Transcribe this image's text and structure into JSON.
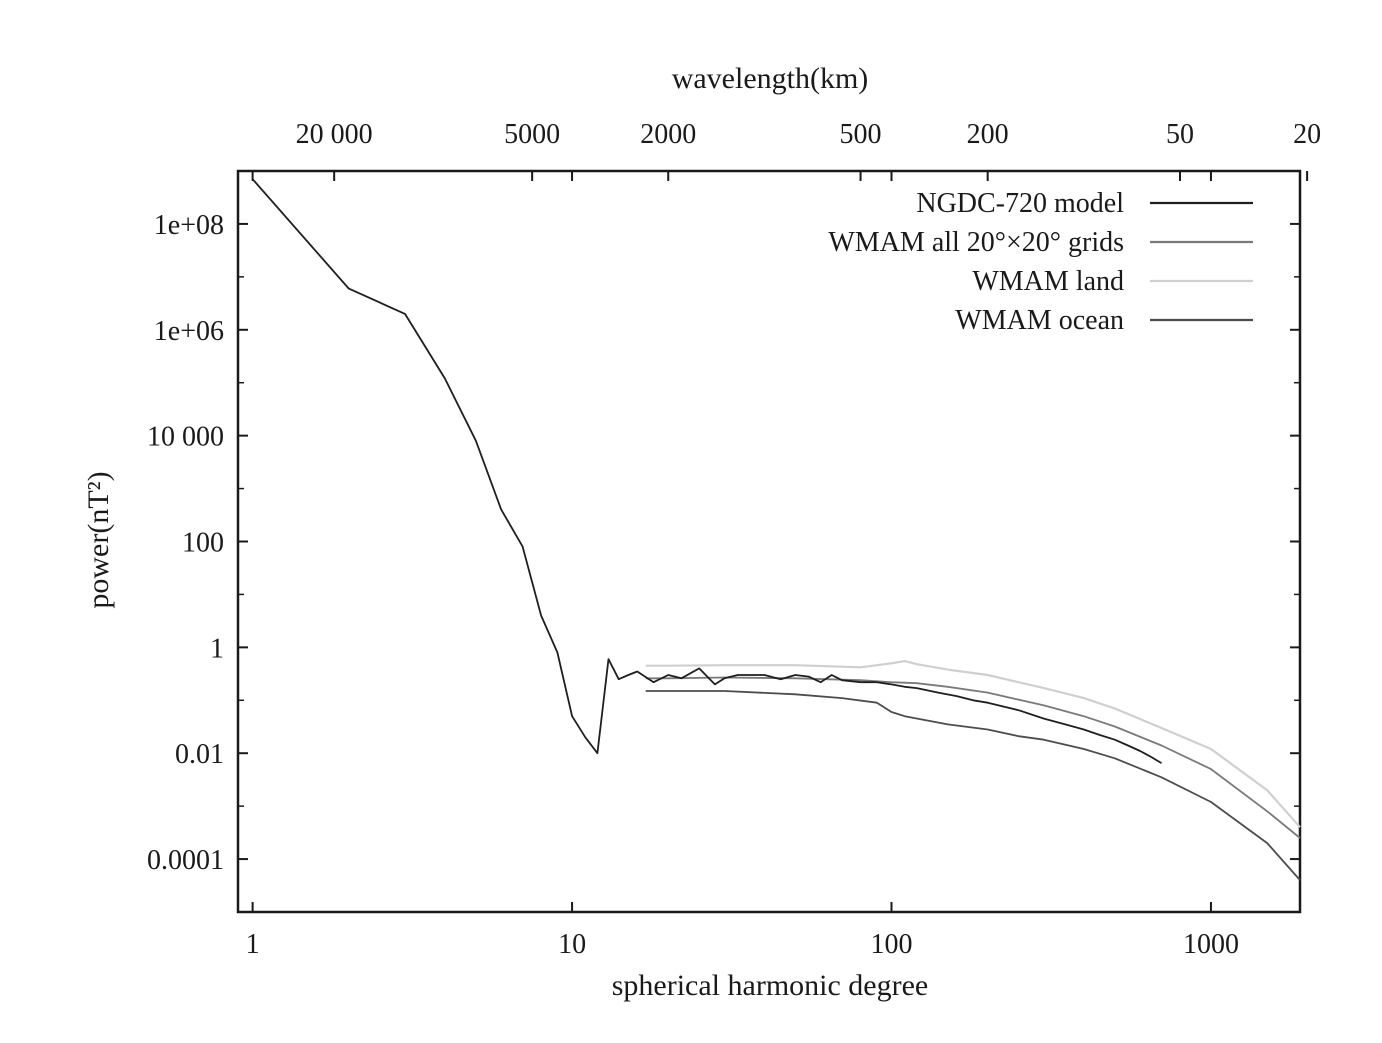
{
  "chart_data": {
    "type": "line",
    "top_axis_title": "wavelength(km)",
    "top_ticks": [
      {
        "label": "20 000",
        "degree": 1.8
      },
      {
        "label": "5000",
        "degree": 7.5
      },
      {
        "label": "2000",
        "degree": 20
      },
      {
        "label": "500",
        "degree": 80
      },
      {
        "label": "200",
        "degree": 200
      },
      {
        "label": "50",
        "degree": 800
      },
      {
        "label": "20",
        "degree": 2000
      }
    ],
    "xlabel": "spherical harmonic degree",
    "ylabel": "power(nT²)",
    "x_scale": "log",
    "y_scale": "log",
    "xlim": [
      0.9,
      1900
    ],
    "ylim": [
      1e-05,
      1000000000
    ],
    "x_ticks": [
      {
        "label": "1",
        "value": 1
      },
      {
        "label": "10",
        "value": 10
      },
      {
        "label": "100",
        "value": 100
      },
      {
        "label": "1000",
        "value": 1000
      }
    ],
    "y_ticks": [
      {
        "label": "0.0001",
        "value": 0.0001
      },
      {
        "label": "0.01",
        "value": 0.01
      },
      {
        "label": "1",
        "value": 1
      },
      {
        "label": "100",
        "value": 100
      },
      {
        "label": "10 000",
        "value": 10000
      },
      {
        "label": "1e+06",
        "value": 1000000
      },
      {
        "label": "1e+08",
        "value": 100000000
      }
    ],
    "legend_position": "top-right",
    "series": [
      {
        "name": "NGDC-720 model",
        "color": "#1f1f1f",
        "x": [
          1,
          2,
          3,
          4,
          5,
          6,
          7,
          8,
          9,
          10,
          11,
          12,
          13,
          14,
          15,
          16,
          18,
          20,
          22,
          25,
          28,
          30,
          33,
          36,
          40,
          45,
          50,
          55,
          60,
          65,
          70,
          80,
          90,
          100,
          110,
          120,
          140,
          160,
          180,
          200,
          250,
          300,
          350,
          400,
          450,
          500,
          550,
          600,
          650,
          700
        ],
        "y": [
          700000000,
          6000000,
          2000000,
          120000,
          8000,
          400,
          80,
          4,
          0.8,
          0.05,
          0.02,
          0.01,
          0.6,
          0.25,
          0.3,
          0.35,
          0.22,
          0.3,
          0.26,
          0.4,
          0.2,
          0.26,
          0.3,
          0.3,
          0.3,
          0.25,
          0.3,
          0.28,
          0.22,
          0.3,
          0.24,
          0.22,
          0.22,
          0.2,
          0.18,
          0.17,
          0.14,
          0.12,
          0.1,
          0.09,
          0.065,
          0.045,
          0.035,
          0.028,
          0.022,
          0.018,
          0.014,
          0.011,
          0.0085,
          0.0065
        ]
      },
      {
        "name": "WMAM all 20°×20° grids",
        "color": "#7a7a7a",
        "x": [
          17,
          20,
          30,
          50,
          80,
          100,
          120,
          150,
          200,
          300,
          400,
          500,
          700,
          1000,
          1500,
          1900
        ],
        "y": [
          0.26,
          0.26,
          0.27,
          0.26,
          0.24,
          0.22,
          0.21,
          0.18,
          0.14,
          0.08,
          0.05,
          0.032,
          0.014,
          0.005,
          0.0008,
          0.00025
        ]
      },
      {
        "name": "WMAM land",
        "color": "#cfcfcf",
        "x": [
          17,
          20,
          30,
          50,
          80,
          100,
          110,
          120,
          150,
          200,
          300,
          400,
          500,
          700,
          1000,
          1500,
          1900
        ],
        "y": [
          0.45,
          0.45,
          0.46,
          0.46,
          0.42,
          0.5,
          0.55,
          0.48,
          0.38,
          0.3,
          0.17,
          0.11,
          0.07,
          0.03,
          0.012,
          0.002,
          0.0004
        ]
      },
      {
        "name": "WMAM ocean",
        "color": "#4d4d4d",
        "x": [
          17,
          20,
          30,
          50,
          70,
          90,
          100,
          110,
          150,
          200,
          250,
          300,
          400,
          500,
          700,
          1000,
          1500,
          1900
        ],
        "y": [
          0.15,
          0.15,
          0.15,
          0.13,
          0.11,
          0.09,
          0.06,
          0.05,
          0.035,
          0.028,
          0.021,
          0.018,
          0.012,
          0.008,
          0.0035,
          0.0012,
          0.0002,
          4e-05
        ]
      }
    ]
  }
}
